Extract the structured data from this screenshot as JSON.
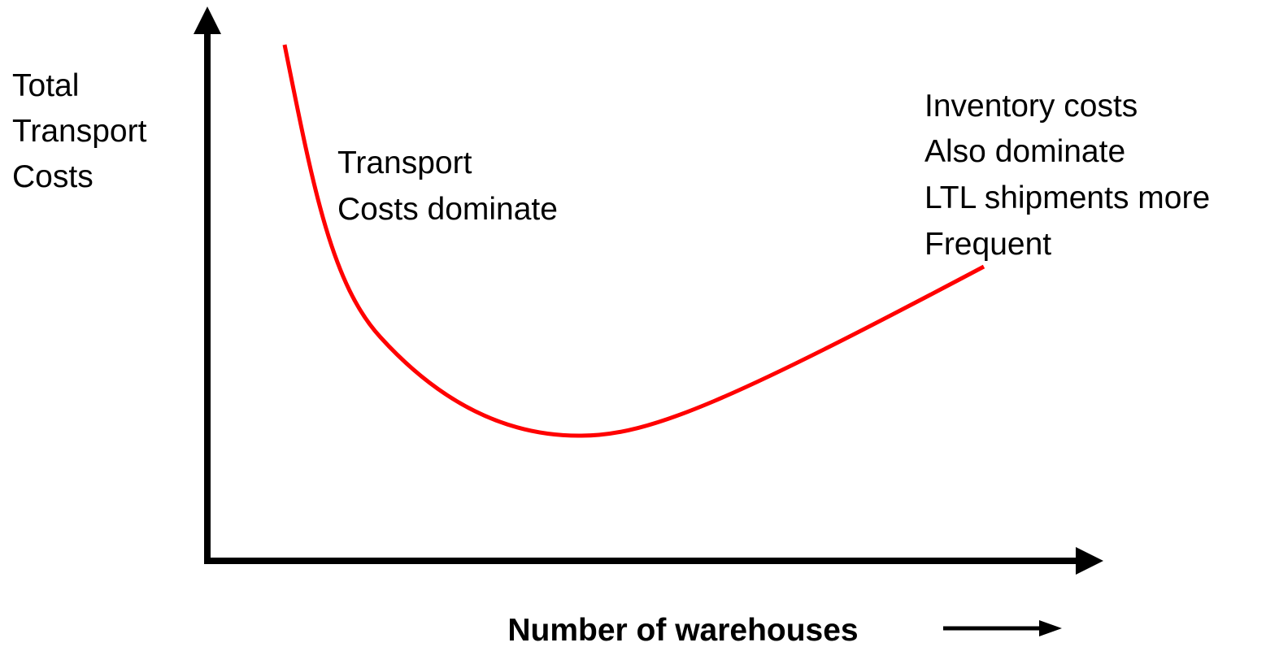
{
  "y_axis_label": {
    "lines": [
      "Total",
      "Transport",
      "Costs"
    ]
  },
  "annotations": [
    {
      "lines": [
        "Transport",
        "Costs dominate"
      ]
    },
    {
      "lines": [
        "Inventory costs",
        "Also dominate",
        "LTL shipments more",
        "Frequent"
      ]
    }
  ],
  "x_axis_label": "Number of warehouses"
}
